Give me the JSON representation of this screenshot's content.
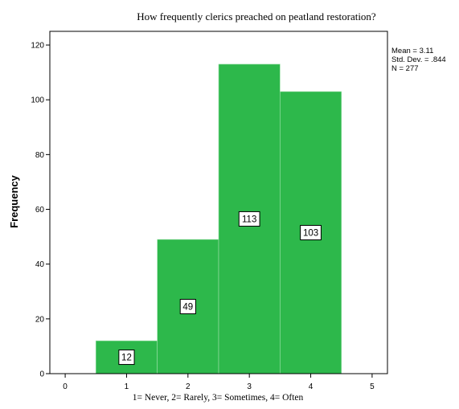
{
  "chart_data": {
    "type": "bar",
    "title": "How frequently clerics preached on peatland restoration?",
    "xlabel": "1= Never, 2= Rarely, 3= Sometimes, 4= Often",
    "ylabel": "Frequency",
    "categories": [
      1,
      2,
      3,
      4
    ],
    "values": [
      12,
      49,
      113,
      103
    ],
    "xlim": [
      -0.25,
      5.25
    ],
    "ylim": [
      0,
      125
    ],
    "xticks": [
      "0",
      "1",
      "2",
      "3",
      "4",
      "5"
    ],
    "yticks": [
      "0",
      "20",
      "40",
      "60",
      "80",
      "100",
      "120"
    ],
    "bar_color": "#2db84b",
    "grid": false,
    "stats": {
      "mean": "Mean = 3.11",
      "std": "Std. Dev. = .844",
      "n": "N = 277"
    }
  }
}
